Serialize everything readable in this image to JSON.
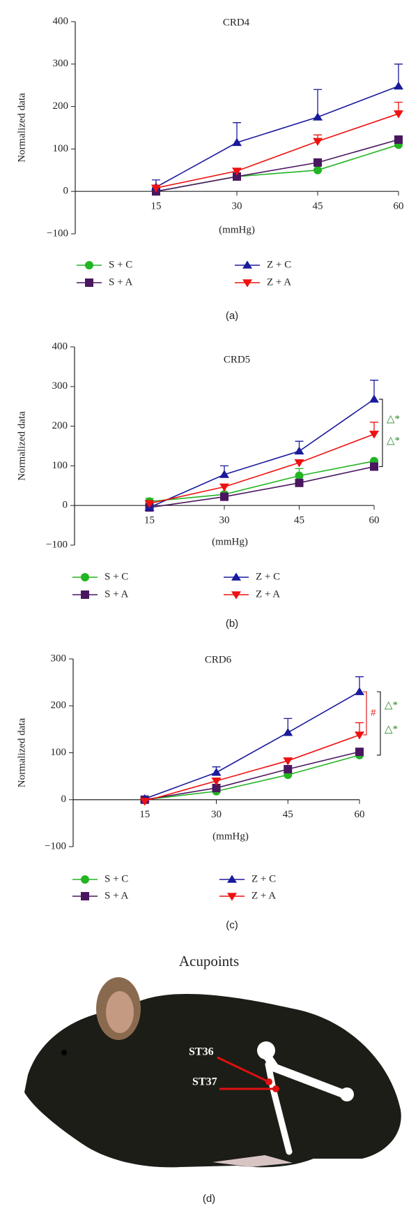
{
  "chart_data": [
    {
      "type": "line",
      "title": "CRD4",
      "panel_label": "(a)",
      "x_label": "(mmHg)",
      "y_label": "Normalized data",
      "x": [
        15,
        30,
        45,
        60
      ],
      "xlim": [
        0,
        60
      ],
      "xticks": [
        15,
        30,
        45,
        60
      ],
      "ylim": [
        -100,
        400
      ],
      "yticks": [
        {
          "value": -100,
          "label": "−100"
        },
        0,
        100,
        200,
        300,
        400
      ],
      "series": [
        {
          "name": "S + C",
          "color": "#22b422",
          "marker": "circle",
          "values": [
            0,
            35,
            50,
            110
          ],
          "errors": [
            null,
            null,
            null,
            null
          ]
        },
        {
          "name": "S + A",
          "color": "#4a1660",
          "marker": "square",
          "values": [
            0,
            35,
            68,
            122
          ],
          "errors": [
            null,
            null,
            null,
            null
          ]
        },
        {
          "name": "Z + C",
          "color": "#1a1a9c",
          "marker": "triangle-up",
          "values": [
            10,
            115,
            175,
            248
          ],
          "errors": [
            17,
            47,
            65,
            52
          ]
        },
        {
          "name": "Z + A",
          "color": "#ee1111",
          "marker": "triangle-down",
          "values": [
            8,
            48,
            118,
            183
          ],
          "errors": [
            null,
            null,
            15,
            27
          ]
        }
      ]
    },
    {
      "type": "line",
      "title": "CRD5",
      "panel_label": "(b)",
      "x_label": "(mmHg)",
      "y_label": "Normalized data",
      "x": [
        15,
        30,
        45,
        60
      ],
      "xlim": [
        0,
        60
      ],
      "xticks": [
        15,
        30,
        45,
        60
      ],
      "ylim": [
        -100,
        400
      ],
      "yticks": [
        {
          "value": -100,
          "label": "−100"
        },
        0,
        100,
        200,
        300,
        400
      ],
      "series": [
        {
          "name": "S + C",
          "color": "#22b422",
          "marker": "circle",
          "values": [
            10,
            28,
            75,
            112
          ],
          "errors": [
            8,
            null,
            18,
            null
          ]
        },
        {
          "name": "S + A",
          "color": "#4a1660",
          "marker": "square",
          "values": [
            -5,
            22,
            57,
            98
          ],
          "errors": [
            null,
            null,
            null,
            null
          ]
        },
        {
          "name": "Z + C",
          "color": "#1a1a9c",
          "marker": "triangle-up",
          "values": [
            -5,
            78,
            137,
            268
          ],
          "errors": [
            null,
            22,
            25,
            48
          ]
        },
        {
          "name": "Z + A",
          "color": "#ee1111",
          "marker": "triangle-down",
          "values": [
            5,
            47,
            108,
            180
          ],
          "errors": [
            null,
            null,
            null,
            30
          ]
        }
      ],
      "annotations": [
        "△*",
        "△*"
      ]
    },
    {
      "type": "line",
      "title": "CRD6",
      "panel_label": "(c)",
      "x_label": "(mmHg)",
      "y_label": "Normalized data",
      "x": [
        15,
        30,
        45,
        60
      ],
      "xlim": [
        0,
        60
      ],
      "xticks": [
        15,
        30,
        45,
        60
      ],
      "ylim": [
        -100,
        300
      ],
      "yticks": [
        {
          "value": -100,
          "label": "−100"
        },
        0,
        100,
        200,
        300
      ],
      "series": [
        {
          "name": "S + C",
          "color": "#22b422",
          "marker": "circle",
          "values": [
            0,
            18,
            53,
            95
          ],
          "errors": [
            null,
            null,
            null,
            null
          ]
        },
        {
          "name": "S + A",
          "color": "#4a1660",
          "marker": "square",
          "values": [
            0,
            25,
            65,
            102
          ],
          "errors": [
            null,
            null,
            null,
            null
          ]
        },
        {
          "name": "Z + C",
          "color": "#1a1a9c",
          "marker": "triangle-up",
          "values": [
            2,
            58,
            143,
            230
          ],
          "errors": [
            null,
            12,
            30,
            32
          ]
        },
        {
          "name": "Z + A",
          "color": "#ee1111",
          "marker": "triangle-down",
          "values": [
            -3,
            40,
            83,
            138
          ],
          "errors": [
            null,
            null,
            null,
            26
          ]
        }
      ],
      "annotations": [
        "#",
        "△*",
        "△*"
      ]
    }
  ],
  "acupoints": {
    "title": "Acupoints",
    "labels": [
      "ST36",
      "ST37"
    ],
    "panel_label": "(d)"
  }
}
